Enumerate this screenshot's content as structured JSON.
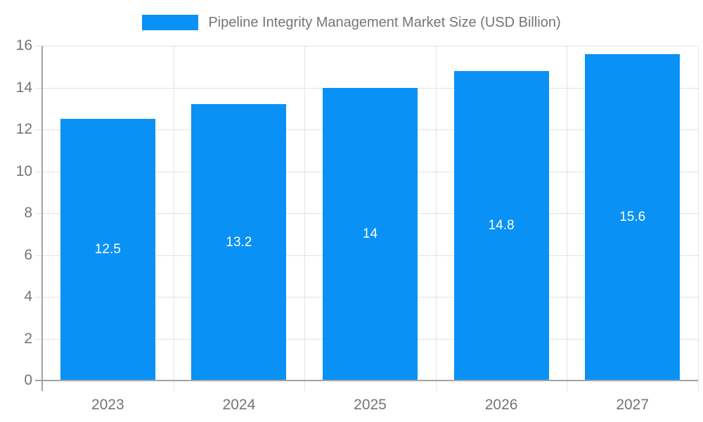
{
  "chart_data": {
    "type": "bar",
    "title": "Pipeline Integrity Management Market Size (USD Billion)",
    "legend": {
      "label": "Pipeline Integrity Management Market Size (USD Billion)",
      "position": "top"
    },
    "categories": [
      "2023",
      "2024",
      "2025",
      "2026",
      "2027"
    ],
    "values": [
      12.5,
      13.2,
      14,
      14.8,
      15.6
    ],
    "value_labels": [
      "12.5",
      "13.2",
      "14",
      "14.8",
      "15.6"
    ],
    "xlabel": "",
    "ylabel": "",
    "ylim": [
      0,
      16
    ],
    "ytick_step": 2,
    "ytick_labels": [
      "0",
      "2",
      "4",
      "6",
      "8",
      "10",
      "12",
      "14",
      "16"
    ],
    "grid": true,
    "colors": {
      "bar": "#0A91F5",
      "text": "#757575",
      "grid": "#E3E3E3",
      "axis": "#A3A3A3",
      "value_label": "#FFFFFF",
      "background": "#FFFFFF"
    }
  }
}
